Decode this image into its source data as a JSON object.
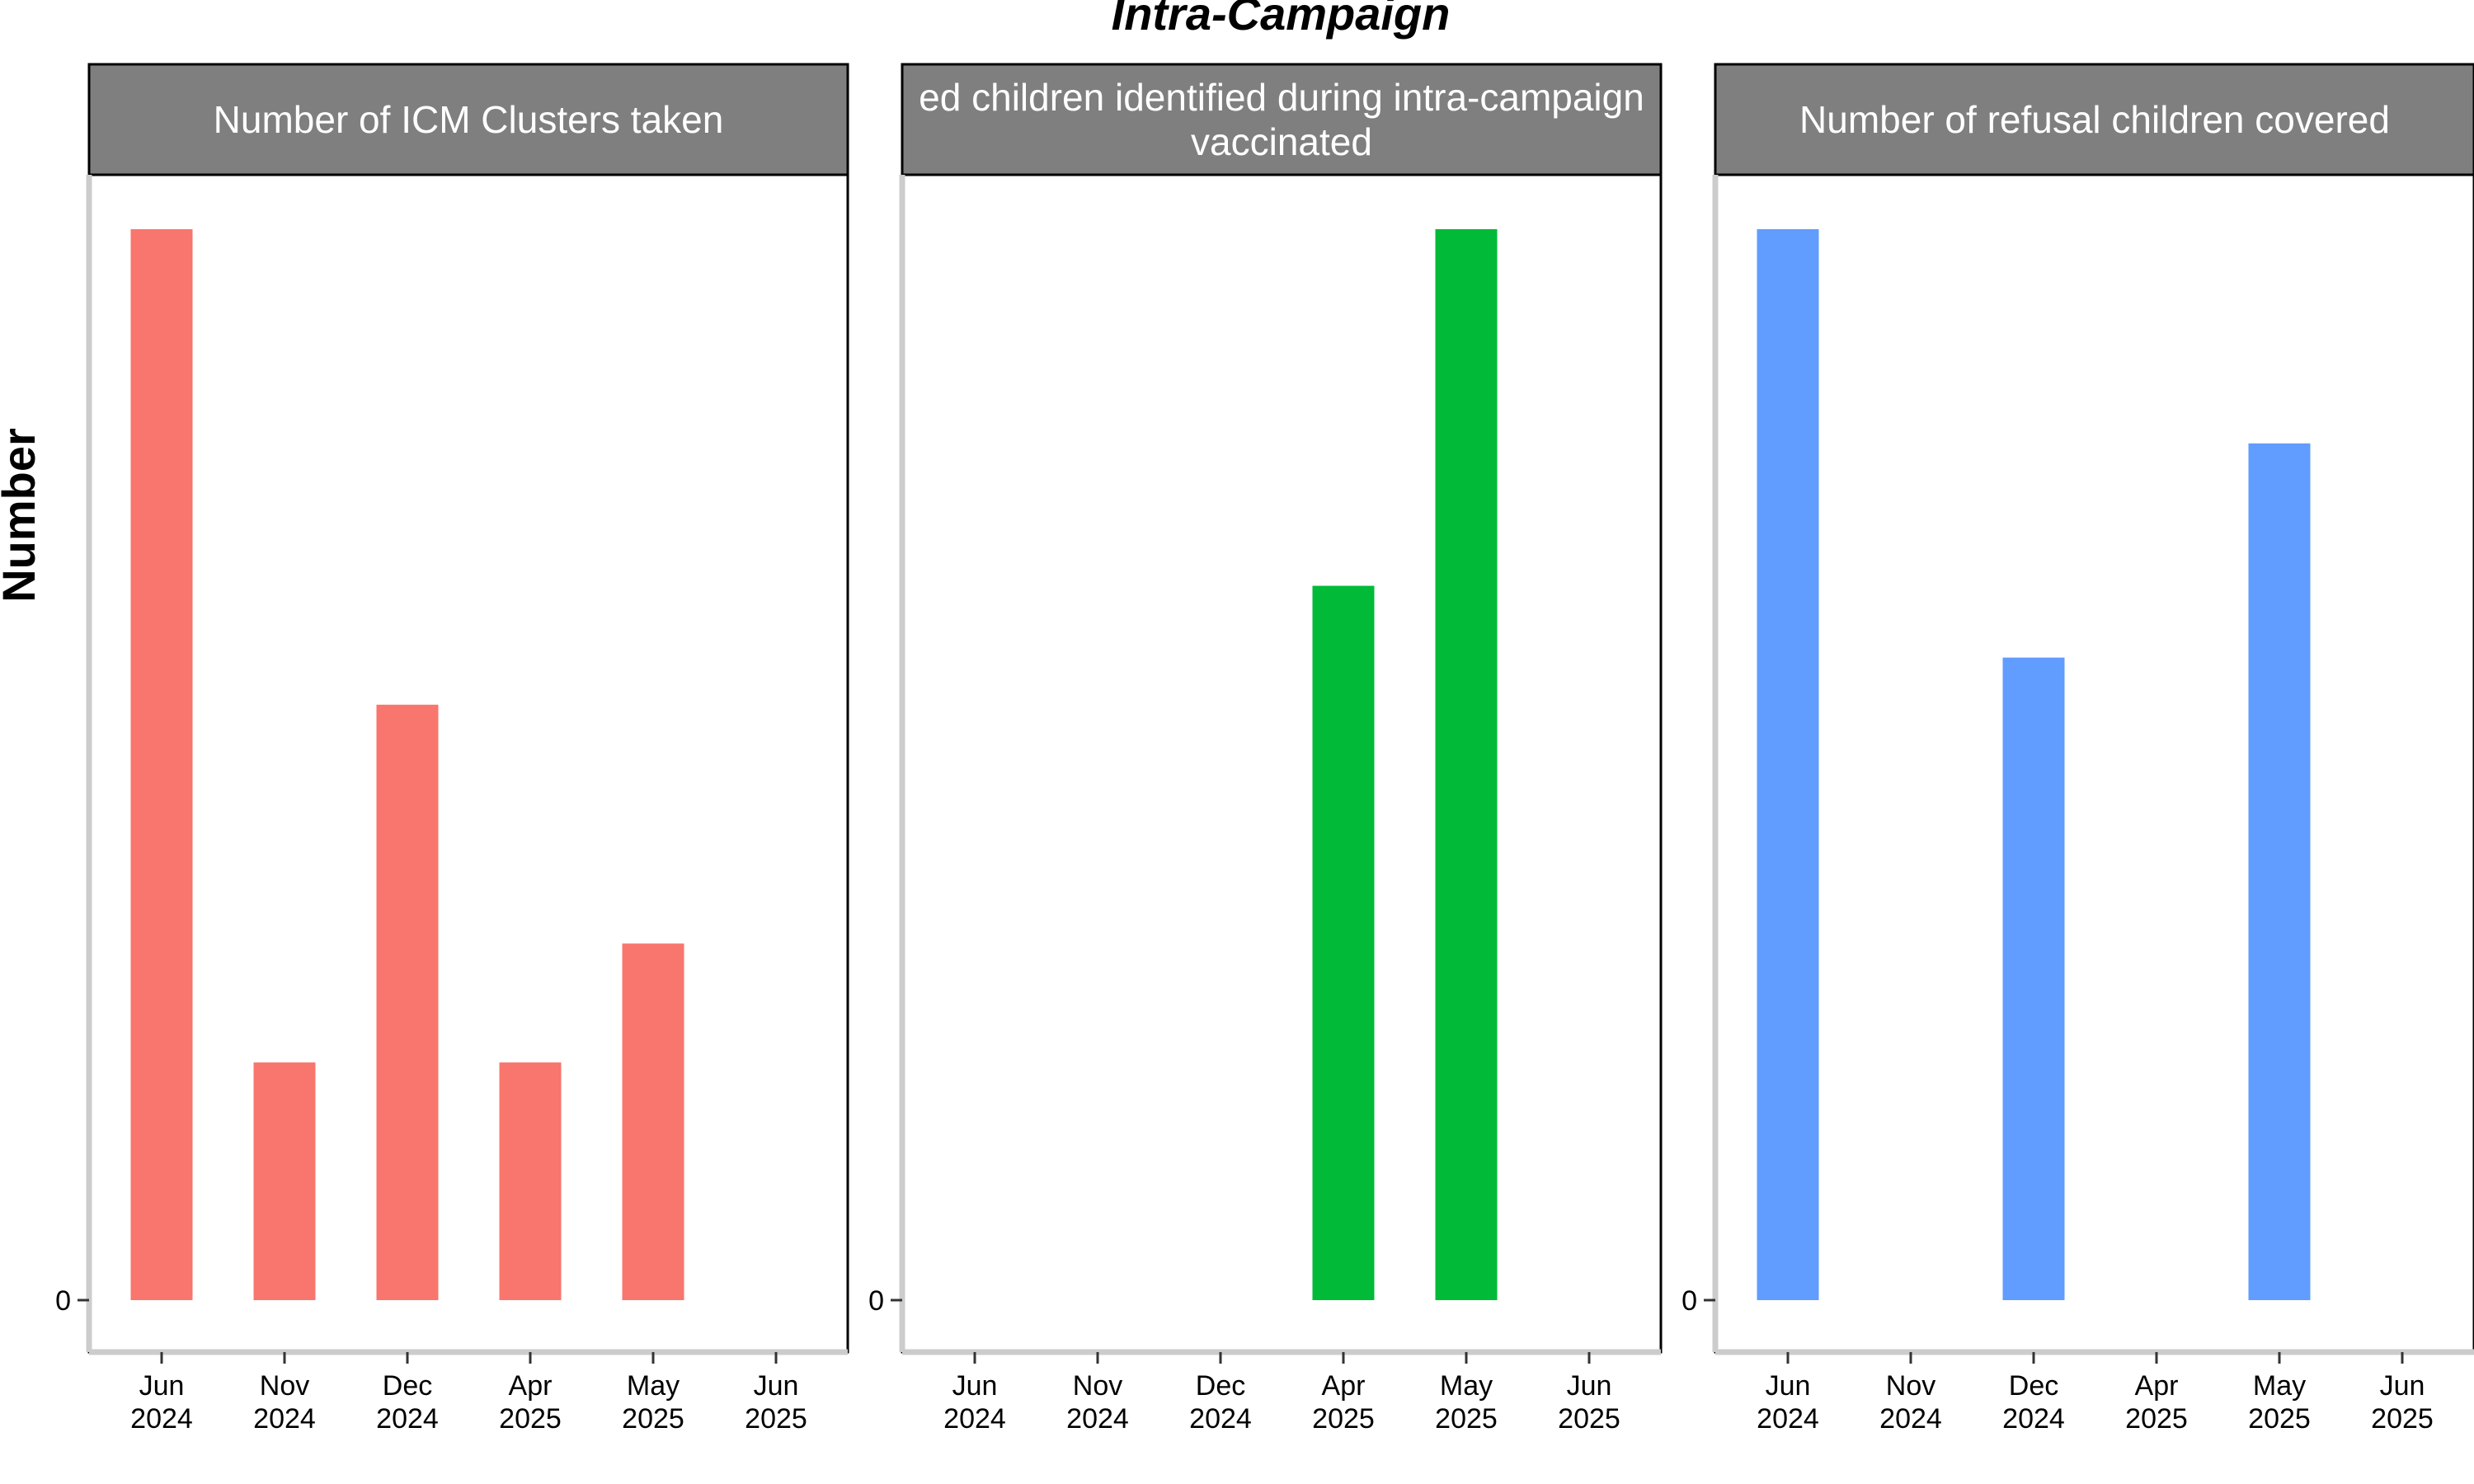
{
  "chart_data": {
    "type": "bar",
    "title": "Intra-Campaign",
    "ylabel": "Number",
    "x_tick_labels": [
      [
        "Jun",
        "2024"
      ],
      [
        "Nov",
        "2024"
      ],
      [
        "Dec",
        "2024"
      ],
      [
        "Apr",
        "2025"
      ],
      [
        "May",
        "2025"
      ],
      [
        "Jun",
        "2025"
      ]
    ],
    "y_tick_label": "0",
    "ylim": [
      0,
      1
    ],
    "values_note": "",
    "panels": [
      {
        "title": [
          "Number of ICM Clusters taken"
        ],
        "color": "#F8766D",
        "categories": [
          "Jun 2024",
          "Nov 2024",
          "Dec 2024",
          "Apr 2025",
          "May 2025"
        ],
        "values": [
          1.0,
          0.222,
          0.556,
          0.222,
          0.333
        ]
      },
      {
        "title": [
          "ed children identified during intra-campaign",
          "vaccinated"
        ],
        "color": "#00BA38",
        "categories": [
          "Apr 2025",
          "May 2025"
        ],
        "values": [
          0.667,
          1.0
        ]
      },
      {
        "title": [
          "Number of refusal children covered"
        ],
        "color": "#619CFF",
        "categories": [
          "Jun 2024",
          "Dec 2024",
          "May 2025"
        ],
        "values": [
          1.0,
          0.6,
          0.8
        ]
      }
    ]
  }
}
